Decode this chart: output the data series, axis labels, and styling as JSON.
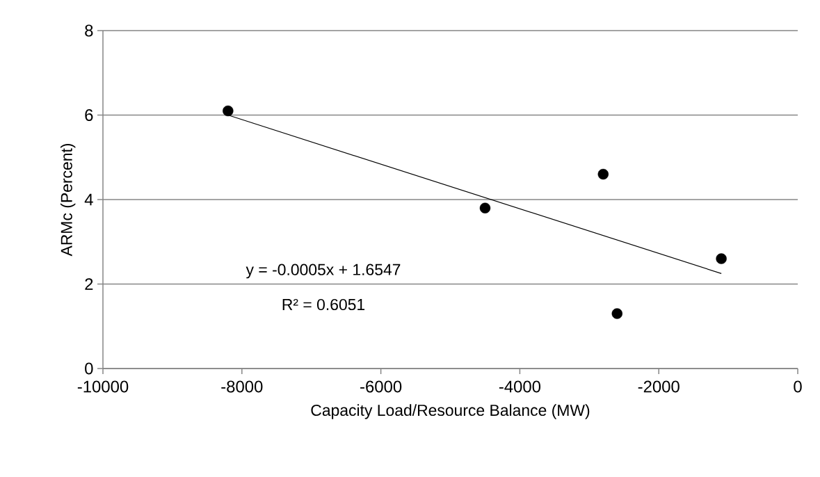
{
  "chart_data": {
    "type": "scatter",
    "xlabel": "Capacity Load/Resource Balance (MW)",
    "ylabel": "ARMc (Percent)",
    "series": [
      {
        "color": "#000000",
        "marker": "circle",
        "x": [
          -8200,
          -4500,
          -2800,
          -2600,
          -1100
        ],
        "values": [
          6.1,
          3.8,
          4.6,
          1.3,
          2.6
        ]
      },
      {
        "type": "line",
        "color": "#000000",
        "marker": "none",
        "line_style": "solid",
        "x": [
          -8200,
          -1100
        ],
        "values": [
          6.0,
          2.25
        ]
      }
    ],
    "annotations": [
      "y = -0.0005x + 1.6547",
      "R² = 0.6051"
    ],
    "xlim": [
      -10000,
      0
    ],
    "xticks": [
      -10000,
      -8000,
      -6000,
      -4000,
      -2000,
      0
    ],
    "ylim": [
      0,
      8
    ],
    "yticks": [
      0,
      2,
      4,
      6,
      8
    ],
    "grid": "y",
    "legend": false
  }
}
